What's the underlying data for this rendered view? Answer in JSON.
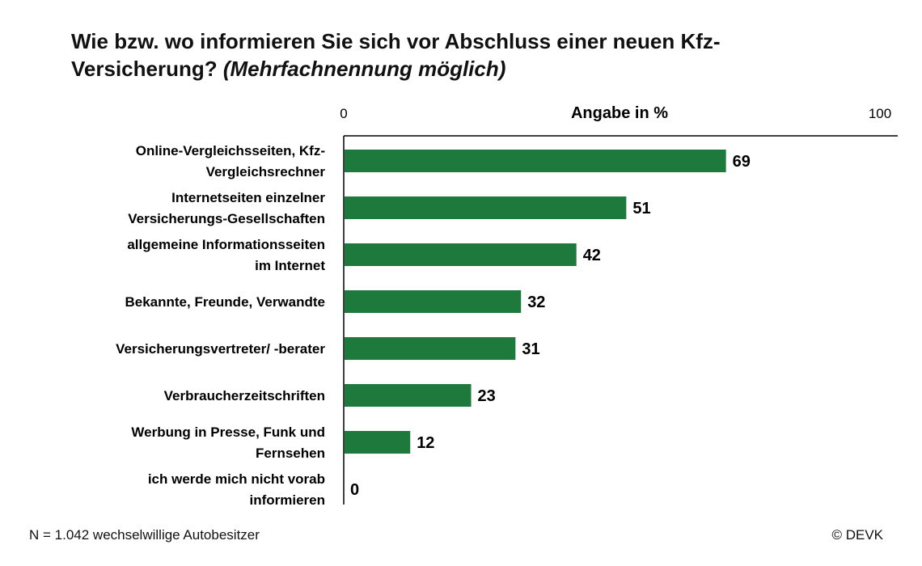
{
  "title": {
    "main": "Wie bzw. wo informieren Sie sich vor Abschluss einer neuen Kfz-Versicherung?",
    "note": "(Mehrfachnennung möglich)"
  },
  "footer": {
    "sample": "N = 1.042 wechselwillige Autobesitzer",
    "copyright": "© DEVK"
  },
  "colors": {
    "bar": "#1e7a3c",
    "axis": "#000000"
  },
  "chart_data": {
    "type": "bar",
    "orientation": "horizontal",
    "axis_label": "Angabe in %",
    "xlim": [
      0,
      100
    ],
    "tick_labels": [
      "0",
      "100"
    ],
    "categories": [
      [
        "Online-Vergleichsseiten, Kfz-",
        "Vergleichsrechner"
      ],
      [
        "Internetseiten einzelner",
        "Versicherungs-Gesellschaften"
      ],
      [
        "allgemeine Informationsseiten",
        "im Internet"
      ],
      [
        "Bekannte, Freunde, Verwandte"
      ],
      [
        "Versicherungsvertreter/ -berater"
      ],
      [
        "Verbraucherzeitschriften"
      ],
      [
        "Werbung in Presse, Funk und",
        "Fernsehen"
      ],
      [
        "ich werde mich nicht vorab",
        "informieren"
      ]
    ],
    "values": [
      69,
      51,
      42,
      32,
      31,
      23,
      12,
      0
    ],
    "data_labels": true,
    "grid": false,
    "legend": "none"
  }
}
